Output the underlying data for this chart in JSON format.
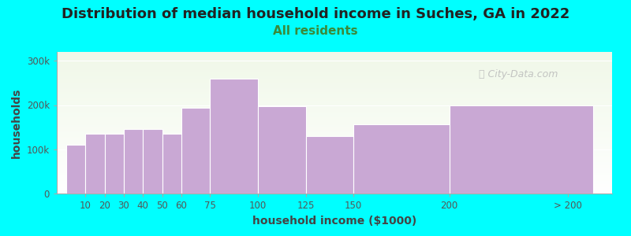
{
  "title": "Distribution of median household income in Suches, GA in 2022",
  "subtitle": "All residents",
  "xlabel": "household income ($1000)",
  "ylabel": "households",
  "bar_labels": [
    "10",
    "20",
    "30",
    "40",
    "50",
    "60",
    "75",
    "100",
    "125",
    "150",
    "200",
    "> 200"
  ],
  "bar_values": [
    110000,
    135000,
    135000,
    145000,
    145000,
    135000,
    193000,
    260000,
    197000,
    130000,
    157000,
    200000
  ],
  "bar_color": "#C9A8D4",
  "bar_left_edges": [
    0,
    10,
    20,
    30,
    40,
    50,
    60,
    75,
    100,
    125,
    150,
    200
  ],
  "bar_widths": [
    10,
    10,
    10,
    10,
    10,
    10,
    15,
    25,
    25,
    25,
    50,
    75
  ],
  "tick_positions": [
    10,
    20,
    30,
    40,
    50,
    60,
    75,
    100,
    125,
    150,
    200,
    262
  ],
  "tick_labels": [
    "10",
    "20",
    "30",
    "40",
    "50",
    "60",
    "75",
    "100",
    "125",
    "150",
    "200",
    "> 200"
  ],
  "xlim": [
    -5,
    285
  ],
  "yticks": [
    0,
    100000,
    200000,
    300000
  ],
  "ytick_labels": [
    "0",
    "100k",
    "200k",
    "300k"
  ],
  "ylim": [
    0,
    320000
  ],
  "background_color": "#00FFFF",
  "plot_bg_top": "#f0f8e8",
  "plot_bg_bottom": "#ffffff",
  "title_fontsize": 13,
  "subtitle_fontsize": 11,
  "subtitle_color": "#3a8a3a",
  "axis_label_fontsize": 10,
  "tick_fontsize": 8.5,
  "watermark": "City-Data.com"
}
